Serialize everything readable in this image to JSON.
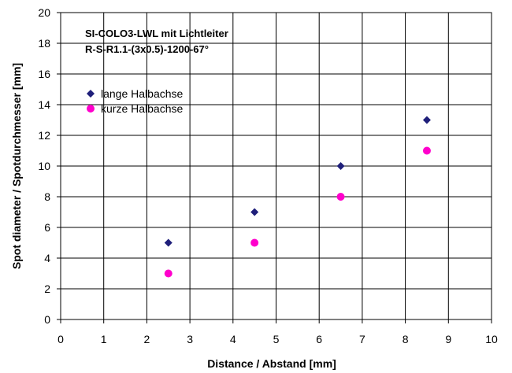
{
  "chart_data": {
    "type": "scatter",
    "title": "",
    "xlabel": "Distance / Abstand [mm]",
    "ylabel": "Spot diameter / Spotdurchmesser [mm]",
    "xlim": [
      0,
      10
    ],
    "ylim": [
      0,
      20
    ],
    "x_ticks": [
      "0",
      "1",
      "2",
      "3",
      "4",
      "5",
      "6",
      "7",
      "8",
      "9",
      "10"
    ],
    "y_ticks": [
      "0",
      "2",
      "4",
      "6",
      "8",
      "10",
      "12",
      "14",
      "16",
      "18",
      "20"
    ],
    "grid": true,
    "legend_position": "top-left",
    "annotations": [
      "SI-COLO3-LWL  mit  Lichtleiter",
      "R-S-R1.1-(3x0.5)-1200-67°"
    ],
    "series": [
      {
        "name": "lange Halbachse",
        "marker": "diamond",
        "color": "#1f1f7a",
        "x": [
          2.5,
          4.5,
          6.5,
          8.5
        ],
        "y": [
          5,
          7,
          10,
          13
        ]
      },
      {
        "name": "kurze Halbachse",
        "marker": "circle",
        "color": "#ff00cc",
        "x": [
          2.5,
          4.5,
          6.5,
          8.5
        ],
        "y": [
          3,
          5,
          8,
          11
        ]
      }
    ]
  }
}
